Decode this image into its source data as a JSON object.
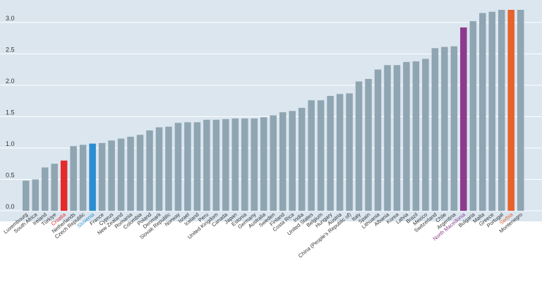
{
  "chart_data": {
    "type": "bar",
    "ylim": [
      0,
      3.2
    ],
    "yticks": [
      "0.0",
      "0.5",
      "1.0",
      "1.5",
      "2.0",
      "2.5",
      "3.0"
    ],
    "grid": true,
    "categories": [
      "Luxembourg",
      "South Africa",
      "Ireland",
      "Türkiye",
      "Croatia",
      "Netherlands",
      "Czech Republic",
      "Slovenia",
      "France",
      "Cyprus",
      "New Zealand",
      "Romania",
      "Colombia",
      "Poland",
      "Denmark",
      "Slovak Republic",
      "Norway",
      "Israel",
      "Iceland",
      "Peru",
      "United Kingdom",
      "Canada",
      "Japan",
      "Estonia",
      "Germany",
      "Australia",
      "Sweden",
      "Finland",
      "Costa Rica",
      "India",
      "United States",
      "Belgium",
      "Hungary",
      "Austria",
      "China (People's Republic of)",
      "Italy",
      "Spain",
      "Lithuania",
      "Albania",
      "Korea",
      "Latvia",
      "Brazil",
      "Mexico",
      "Switzerland",
      "Chile",
      "Argentina",
      "North Macedonia",
      "Bulgaria",
      "Malta",
      "Greece",
      "Portugal",
      "Serbia",
      "Montenegro"
    ],
    "values": [
      0.48,
      0.5,
      0.69,
      0.75,
      0.8,
      1.03,
      1.05,
      1.07,
      1.08,
      1.12,
      1.15,
      1.18,
      1.21,
      1.28,
      1.33,
      1.34,
      1.4,
      1.41,
      1.41,
      1.45,
      1.45,
      1.46,
      1.47,
      1.47,
      1.47,
      1.49,
      1.52,
      1.57,
      1.59,
      1.64,
      1.76,
      1.76,
      1.83,
      1.86,
      1.87,
      2.06,
      2.1,
      2.25,
      2.32,
      2.32,
      2.37,
      2.38,
      2.42,
      2.59,
      2.61,
      2.62,
      2.92,
      3.02,
      3.15,
      3.17,
      3.2,
      3.2,
      3.2
    ],
    "colors": {
      "default": "#8fa5b2",
      "background": "#dbe6ef",
      "highlight_red": "#e32b2b",
      "highlight_blue": "#2b8ed0",
      "highlight_purple": "#8e3a8e",
      "highlight_orange": "#e8622c",
      "label_default": "#333333"
    },
    "highlights": {
      "Croatia": "highlight_red",
      "Slovenia": "highlight_blue",
      "North Macedonia": "highlight_purple",
      "Serbia": "highlight_orange"
    }
  }
}
